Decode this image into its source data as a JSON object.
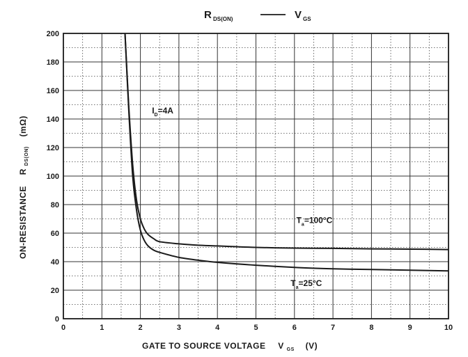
{
  "chart_data": {
    "type": "line",
    "title": {
      "left_main": "R",
      "left_sub": "DS(ON)",
      "dash": "——",
      "right_main": "V",
      "right_sub": "GS"
    },
    "xlabel": {
      "main": "GATE TO SOURCE VOLTAGE",
      "symbol": "V",
      "sub": "GS",
      "unit": "(V)"
    },
    "ylabel": {
      "main": "ON-RESISTANCE",
      "symbol": "R",
      "sub": "DS(ON)",
      "unit": "(mΩ)"
    },
    "xlim": [
      0,
      10
    ],
    "ylim": [
      0,
      200
    ],
    "x_ticks": [
      "0",
      "1",
      "2",
      "3",
      "4",
      "5",
      "6",
      "7",
      "8",
      "9",
      "10"
    ],
    "y_ticks": [
      "0",
      "20",
      "40",
      "60",
      "80",
      "100",
      "120",
      "140",
      "160",
      "180",
      "200"
    ],
    "grid": true,
    "minor_grid": "dotted",
    "series": [
      {
        "name": "",
        "color": "#1a1a1a",
        "x": [
          1.6,
          1.7,
          1.8,
          1.9,
          2.0,
          2.1,
          2.2,
          2.35,
          2.5,
          3.0,
          3.5,
          4.0,
          5.0,
          6.0,
          7.0,
          8.0,
          9.0,
          10.0
        ],
        "y": [
          200,
          148,
          108,
          83,
          70,
          63,
          59,
          56,
          54,
          52.5,
          51.5,
          51,
          50,
          49.5,
          49.3,
          49,
          48.8,
          48.5
        ]
      },
      {
        "name": "",
        "color": "#1a1a1a",
        "x": [
          1.6,
          1.7,
          1.8,
          1.9,
          2.0,
          2.1,
          2.2,
          2.35,
          2.5,
          3.0,
          3.5,
          4.0,
          5.0,
          6.0,
          7.0,
          8.0,
          9.0,
          10.0
        ],
        "y": [
          200,
          145,
          100,
          76,
          62,
          55,
          51,
          48,
          46.5,
          43,
          41,
          39.5,
          37.5,
          36,
          35,
          34.5,
          34,
          33.5
        ]
      }
    ],
    "annotations": [
      {
        "main": "I",
        "sub": "D",
        "value": "=4A",
        "x": 2.3,
        "y": 144
      },
      {
        "main": "T",
        "sub": "a",
        "value": "=100°C",
        "x": 6.05,
        "y": 67
      },
      {
        "main": "T",
        "sub": "a",
        "value": "=25°C",
        "x": 5.9,
        "y": 23
      }
    ]
  }
}
